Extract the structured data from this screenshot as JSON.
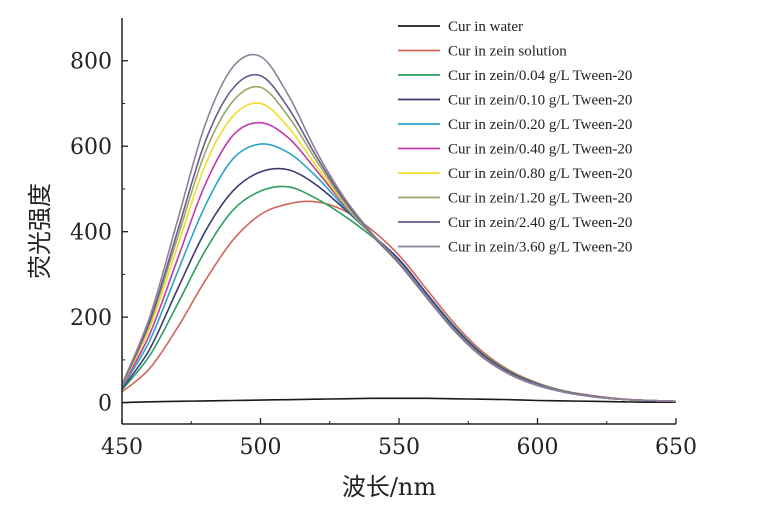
{
  "chart_data": {
    "type": "line",
    "title": "",
    "xlabel": "波长/nm",
    "ylabel": "荧光强度",
    "xlim": [
      450,
      650
    ],
    "ylim": [
      -50,
      900
    ],
    "xticks": [
      450,
      500,
      550,
      600,
      650
    ],
    "yticks": [
      0,
      200,
      400,
      600,
      800
    ],
    "grid": false,
    "legend_position": "top-right",
    "x": [
      450,
      460,
      470,
      480,
      490,
      500,
      510,
      520,
      530,
      540,
      550,
      560,
      570,
      580,
      590,
      600,
      610,
      620,
      630,
      640,
      650
    ],
    "series": [
      {
        "name": "Cur in water",
        "color": "#1a1a1a",
        "values": [
          0,
          2,
          3,
          4,
          5,
          6,
          7,
          8,
          9,
          10,
          10,
          10,
          9,
          8,
          7,
          5,
          4,
          3,
          2,
          1,
          1
        ]
      },
      {
        "name": "Cur in zein solution",
        "color": "#d0665a",
        "values": [
          25,
          80,
          175,
          285,
          380,
          440,
          465,
          470,
          450,
          405,
          345,
          265,
          185,
          120,
          75,
          46,
          27,
          16,
          9,
          5,
          3
        ]
      },
      {
        "name": "Cur in zein/0.04 g/L Tween-20",
        "color": "#2e9e5e",
        "values": [
          30,
          110,
          230,
          355,
          450,
          495,
          505,
          478,
          438,
          390,
          335,
          255,
          178,
          115,
          72,
          44,
          26,
          15,
          8,
          5,
          3
        ]
      },
      {
        "name": "Cur in zein/0.10 g/L Tween-20",
        "color": "#3c3c72",
        "values": [
          33,
          125,
          265,
          400,
          495,
          540,
          545,
          510,
          455,
          395,
          335,
          255,
          176,
          113,
          70,
          43,
          25,
          15,
          8,
          5,
          3
        ]
      },
      {
        "name": "Cur in zein/0.20 g/L Tween-20",
        "color": "#2ba5c6",
        "values": [
          36,
          145,
          305,
          460,
          570,
          605,
          585,
          530,
          460,
          395,
          330,
          250,
          172,
          110,
          68,
          42,
          25,
          14,
          8,
          5,
          3
        ]
      },
      {
        "name": "Cur in zein/0.40 g/L Tween-20",
        "color": "#c23aa8",
        "values": [
          38,
          160,
          335,
          510,
          625,
          655,
          620,
          545,
          465,
          395,
          328,
          248,
          170,
          109,
          67,
          41,
          24,
          14,
          8,
          5,
          3
        ]
      },
      {
        "name": "Cur in zein/0.80 g/L Tween-20",
        "color": "#f0dc2a",
        "values": [
          40,
          175,
          365,
          555,
          670,
          700,
          645,
          555,
          468,
          393,
          325,
          245,
          168,
          107,
          66,
          40,
          24,
          14,
          8,
          5,
          3
        ]
      },
      {
        "name": "Cur in zein/1.20 g/L Tween-20",
        "color": "#9aa668",
        "values": [
          41,
          185,
          385,
          585,
          705,
          738,
          670,
          568,
          472,
          393,
          325,
          245,
          168,
          107,
          66,
          40,
          24,
          14,
          8,
          5,
          3
        ]
      },
      {
        "name": "Cur in zein/2.40 g/L Tween-20",
        "color": "#6b5c8e",
        "values": [
          42,
          190,
          400,
          610,
          735,
          765,
          690,
          578,
          476,
          395,
          326,
          246,
          168,
          107,
          66,
          40,
          24,
          14,
          8,
          5,
          3
        ]
      },
      {
        "name": "Cur in zein/3.60 g/L Tween-20",
        "color": "#8f7f9a",
        "values": [
          43,
          200,
          425,
          650,
          785,
          810,
          720,
          590,
          482,
          398,
          328,
          247,
          169,
          108,
          66,
          40,
          24,
          14,
          8,
          5,
          3
        ]
      }
    ]
  }
}
